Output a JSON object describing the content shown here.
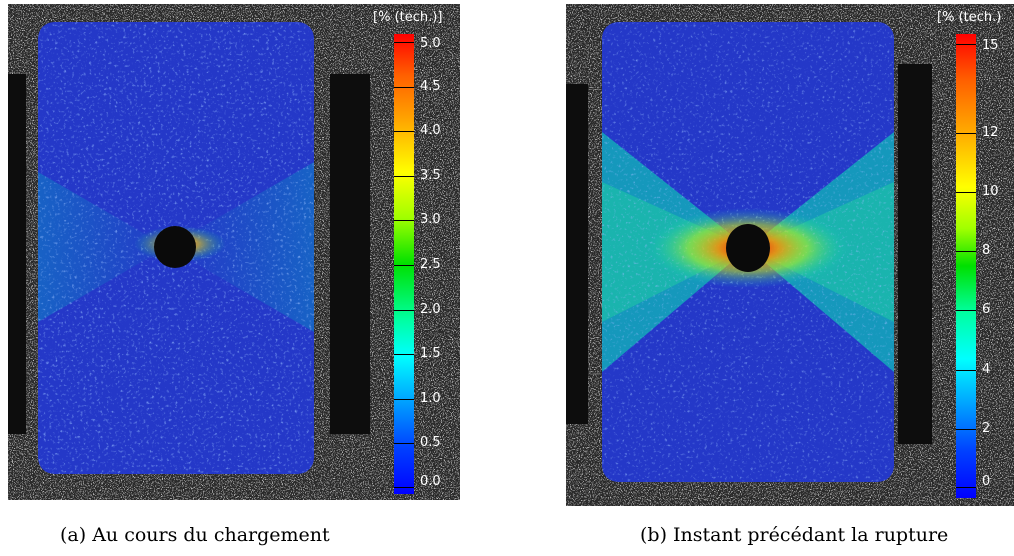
{
  "panels": [
    {
      "id": "a",
      "colorbar": {
        "title": "[% (tech.)]",
        "ticks": [
          "5.0",
          "4.5",
          "4.0",
          "3.5",
          "3.0",
          "2.5",
          "2.0",
          "1.5",
          "1.0",
          "0.5",
          "0.0"
        ],
        "max": 5.0,
        "min": 0.0
      },
      "caption": "(a)  Au cours du chargement"
    },
    {
      "id": "b",
      "colorbar": {
        "title": "[% (tech.)",
        "ticks": [
          "15",
          "12",
          "10",
          "8",
          "6",
          "4",
          "2",
          "0"
        ],
        "max": 15,
        "min": 0
      },
      "caption": "(b)  Instant précédant la rupture"
    }
  ],
  "colors": {
    "strain_low": "#1e2fd8",
    "strain_mid": "#00e0c0",
    "strain_high": "#ff0000",
    "background": "#000000"
  }
}
